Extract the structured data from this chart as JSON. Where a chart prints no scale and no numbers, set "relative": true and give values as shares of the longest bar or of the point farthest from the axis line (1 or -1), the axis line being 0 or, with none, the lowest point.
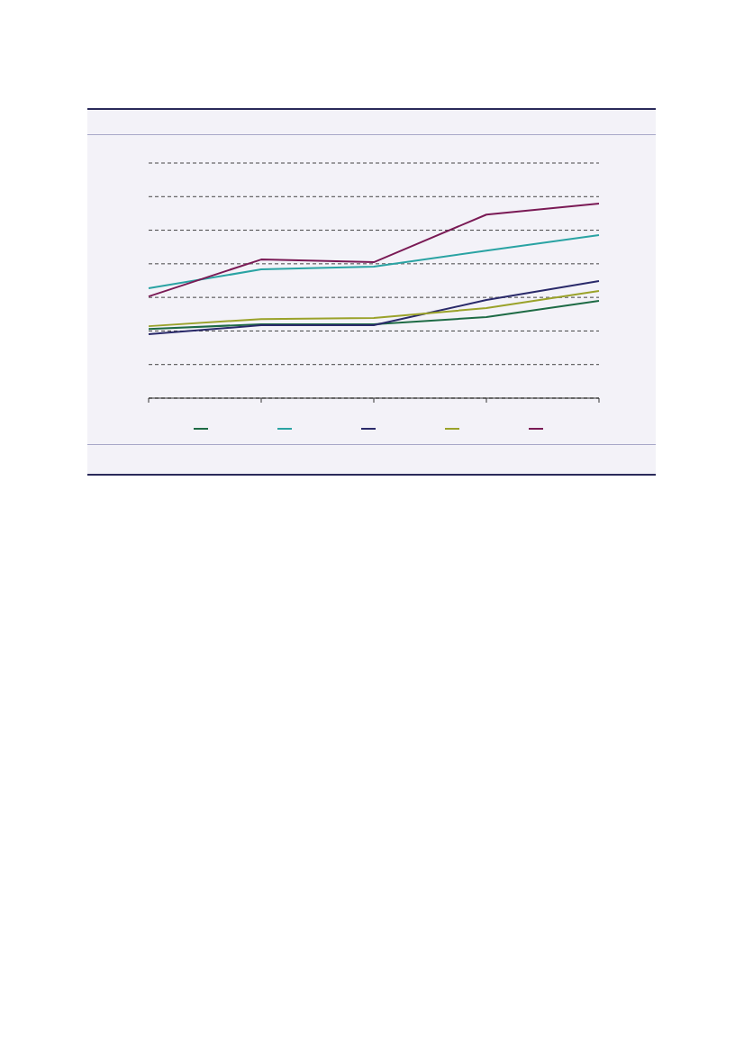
{
  "chart_data": {
    "type": "line",
    "relative": true,
    "grid": "y",
    "line_style": "solid",
    "marker": "none",
    "categories": [
      null,
      null,
      null,
      null,
      null
    ],
    "series": [
      {
        "color": "#1e6b45",
        "values": [
          0.356,
          0.38,
          0.38,
          0.417,
          0.5
        ]
      },
      {
        "color": "#2aa3a3",
        "values": [
          0.565,
          0.662,
          0.676,
          0.759,
          0.838
        ]
      },
      {
        "color": "#2a2a6a",
        "values": [
          0.329,
          0.375,
          0.375,
          0.505,
          0.602
        ]
      },
      {
        "color": "#9aa22a",
        "values": [
          0.37,
          0.407,
          0.412,
          0.463,
          0.551
        ]
      },
      {
        "color": "#7a1a55",
        "values": [
          0.523,
          0.713,
          0.699,
          0.944,
          1
        ]
      }
    ]
  }
}
